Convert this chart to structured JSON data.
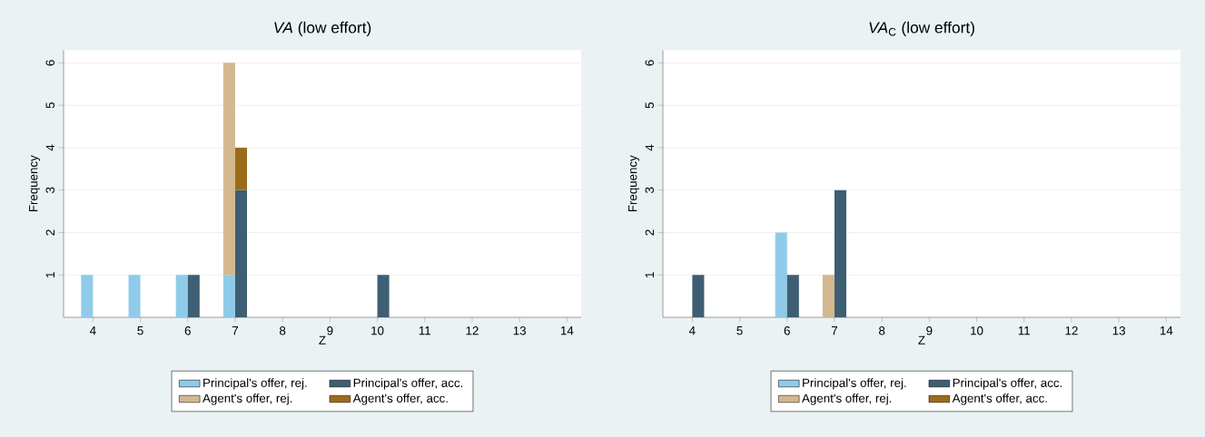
{
  "chart_data": [
    {
      "type": "bar",
      "title": "*VA* (low effort)",
      "xlabel": "Z",
      "ylabel": "Frequency",
      "categories": [
        "4",
        "5",
        "6",
        "7",
        "8",
        "9",
        "10",
        "11",
        "12",
        "13",
        "14"
      ],
      "ylim": [
        0,
        6.3
      ],
      "yticks": [
        1,
        2,
        3,
        4,
        5,
        6
      ],
      "grid": "y",
      "legend": "bottom",
      "series": [
        {
          "name": "Principal's offer, rej.",
          "color": "#8fcbe8",
          "values": [
            1,
            1,
            1,
            1,
            null,
            null,
            null,
            null,
            null,
            null,
            null
          ]
        },
        {
          "name": "Principal's offer, acc.",
          "color": "#3e5e73",
          "values": [
            null,
            null,
            1,
            3,
            null,
            null,
            1,
            null,
            null,
            null,
            null
          ]
        },
        {
          "name": "Agent's offer, rej.",
          "color": "#d3b88f",
          "values": [
            null,
            null,
            null,
            5,
            null,
            null,
            null,
            null,
            null,
            null,
            null
          ],
          "base": [
            null,
            null,
            null,
            1,
            null,
            null,
            null,
            null,
            null,
            null,
            null
          ]
        },
        {
          "name": "Agent's offer, acc.",
          "color": "#9c6b1a",
          "values": [
            null,
            null,
            null,
            1,
            null,
            null,
            null,
            null,
            null,
            null,
            null
          ],
          "base": [
            null,
            null,
            null,
            3,
            null,
            null,
            null,
            null,
            null,
            null,
            null
          ]
        }
      ]
    },
    {
      "type": "bar",
      "title": "*VA*$_{C}$ (low effort)",
      "xlabel": "Z",
      "ylabel": "Frequency",
      "categories": [
        "4",
        "5",
        "6",
        "7",
        "8",
        "9",
        "10",
        "11",
        "12",
        "13",
        "14"
      ],
      "ylim": [
        0,
        6.3
      ],
      "yticks": [
        1,
        2,
        3,
        4,
        5,
        6
      ],
      "grid": "y",
      "legend": "bottom",
      "series": [
        {
          "name": "Principal's offer, rej.",
          "color": "#8fcbe8",
          "values": [
            null,
            null,
            2,
            null,
            null,
            null,
            null,
            null,
            null,
            null,
            null
          ]
        },
        {
          "name": "Principal's offer, acc.",
          "color": "#3e5e73",
          "values": [
            1,
            null,
            1,
            3,
            null,
            null,
            null,
            null,
            null,
            null,
            null
          ]
        },
        {
          "name": "Agent's offer, rej.",
          "color": "#d3b88f",
          "values": [
            null,
            null,
            null,
            1,
            null,
            null,
            null,
            null,
            null,
            null,
            null
          ]
        },
        {
          "name": "Agent's offer, acc.",
          "color": "#9c6b1a",
          "values": [
            null,
            null,
            null,
            null,
            null,
            null,
            null,
            null,
            null,
            null,
            null
          ]
        }
      ]
    }
  ]
}
